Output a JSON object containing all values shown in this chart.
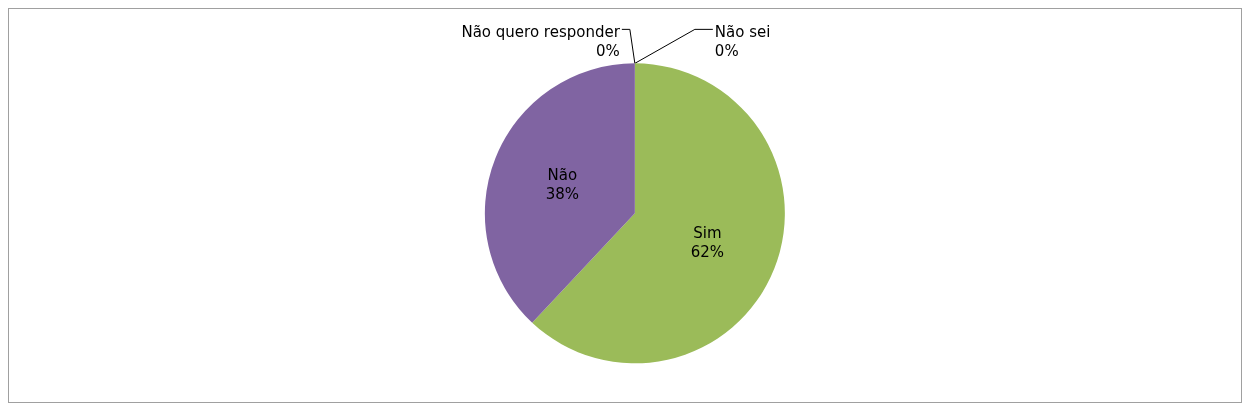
{
  "chart_data": {
    "type": "pie",
    "categories": [
      "Não sei",
      "Não quero responder",
      "Sim",
      "Não"
    ],
    "values": [
      0,
      0,
      62,
      38
    ],
    "value_labels": [
      "0%",
      "0%",
      "62%",
      "38%"
    ],
    "colors": [
      "#4f81bd",
      "#c0504d",
      "#9bbb59",
      "#8064a2"
    ],
    "legend": false
  }
}
